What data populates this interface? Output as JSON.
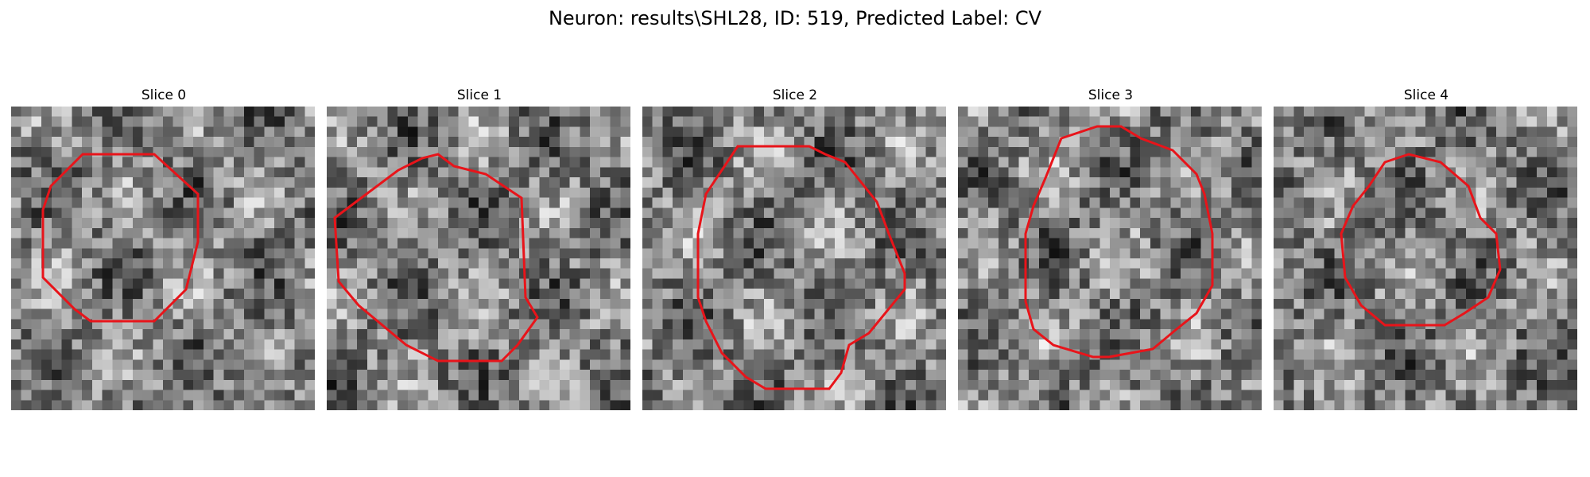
{
  "figure": {
    "title": "Neuron: results\\SHL28, ID: 519, Predicted Label: CV"
  },
  "panels": [
    {
      "title": "Slice 0",
      "contour_color": "#e8141a",
      "seed": 11
    },
    {
      "title": "Slice 1",
      "contour_color": "#e8141a",
      "seed": 23
    },
    {
      "title": "Slice 2",
      "contour_color": "#e8141a",
      "seed": 37
    },
    {
      "title": "Slice 3",
      "contour_color": "#e8141a",
      "seed": 41
    },
    {
      "title": "Slice 4",
      "contour_color": "#e8141a",
      "seed": 59
    }
  ]
}
